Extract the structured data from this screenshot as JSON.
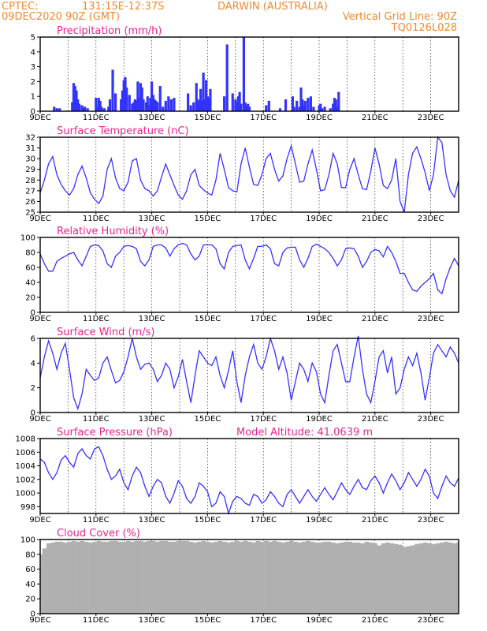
{
  "header": {
    "center": "CPTEC:",
    "coords": "131:15E-12:37S",
    "location": "DARWIN (AUSTRALIA)",
    "init": "09DEC2020 90Z (GMT)",
    "grid_line": "Vertical Grid Line: 90Z",
    "model": "TQ0126L028"
  },
  "x_ticks": [
    "9DEC",
    "11DEC",
    "13DEC",
    "15DEC",
    "17DEC",
    "19DEC",
    "21DEC",
    "23DEC"
  ],
  "colors": {
    "series": "#3333ff",
    "cloud": "#b0b0b0",
    "title": "#e8258c",
    "header": "#f08a2e"
  },
  "chart_data": [
    {
      "type": "bar",
      "title": "Precipitation (mm/h)",
      "ylim": [
        0,
        5
      ],
      "yticks": [
        0,
        1,
        2,
        3,
        4,
        5
      ],
      "x_unit": "days since 9DEC",
      "x": [
        0.5,
        0.6,
        0.7,
        1.15,
        1.2,
        1.25,
        1.3,
        1.35,
        1.4,
        1.5,
        1.55,
        1.6,
        1.7,
        2.0,
        2.05,
        2.1,
        2.15,
        2.2,
        2.3,
        2.45,
        2.5,
        2.6,
        2.7,
        2.9,
        2.95,
        3.0,
        3.05,
        3.1,
        3.2,
        3.3,
        3.35,
        3.4,
        3.45,
        3.5,
        3.55,
        3.6,
        3.65,
        3.7,
        3.8,
        3.85,
        3.9,
        3.95,
        4.0,
        4.05,
        4.1,
        4.15,
        4.2,
        4.3,
        4.4,
        4.5,
        4.6,
        4.7,
        4.8,
        5.3,
        5.4,
        5.5,
        5.6,
        5.65,
        5.7,
        5.75,
        5.8,
        5.85,
        5.9,
        5.95,
        6.0,
        6.05,
        6.1,
        6.6,
        6.7,
        6.9,
        7.0,
        7.05,
        7.1,
        7.15,
        7.2,
        7.3,
        7.35,
        7.4,
        7.45,
        7.5,
        8.1,
        8.2,
        8.6,
        8.8,
        9.05,
        9.1,
        9.2,
        9.3,
        9.35,
        9.4,
        9.45,
        9.5,
        9.6,
        9.7,
        9.8,
        10.0,
        10.05,
        10.1,
        10.2,
        10.4,
        10.5,
        10.55,
        10.6,
        10.65,
        10.7
      ],
      "values": [
        0.3,
        0.2,
        0.2,
        0.6,
        1.9,
        1.7,
        1.4,
        0.8,
        0.5,
        0.4,
        0.2,
        0.3,
        0.2,
        0.9,
        0.3,
        0.9,
        0.7,
        0.3,
        0.2,
        0.3,
        0.8,
        2.8,
        1.2,
        0.8,
        1.4,
        2.1,
        2.3,
        1.6,
        1.1,
        0.5,
        0.6,
        0.8,
        0.7,
        2.0,
        0.9,
        1.9,
        1.6,
        0.8,
        0.6,
        1.0,
        0.4,
        0.9,
        2.0,
        1.1,
        0.8,
        0.7,
        0.6,
        1.7,
        0.3,
        0.7,
        1.0,
        0.8,
        0.9,
        1.2,
        0.4,
        0.6,
        1.9,
        0.8,
        0.7,
        1.5,
        0.7,
        2.6,
        0.8,
        2.1,
        1.0,
        0.9,
        1.5,
        1.0,
        4.5,
        1.2,
        0.8,
        0.6,
        1.0,
        1.3,
        0.5,
        5.0,
        0.6,
        0.4,
        0.5,
        0.3,
        0.4,
        0.7,
        0.2,
        0.8,
        1.0,
        0.3,
        0.7,
        0.3,
        1.6,
        0.8,
        0.4,
        0.7,
        0.9,
        1.0,
        0.3,
        0.4,
        0.5,
        0.2,
        0.3,
        0.2,
        0.5,
        0.9,
        0.8,
        0.3,
        1.3
      ]
    },
    {
      "type": "line",
      "title": "Surface Temperature (nC)",
      "ylim": [
        25,
        32
      ],
      "yticks": [
        25,
        26,
        27,
        28,
        29,
        30,
        31,
        32
      ],
      "x_unit": "days since 9DEC",
      "x": [
        0.0,
        0.15,
        0.3,
        0.45,
        0.6,
        0.75,
        0.9,
        1.05,
        1.2,
        1.35,
        1.5,
        1.65,
        1.8,
        1.95,
        2.1,
        2.25,
        2.4,
        2.55,
        2.7,
        2.85,
        3.0,
        3.15,
        3.3,
        3.45,
        3.6,
        3.75,
        3.9,
        4.05,
        4.2,
        4.35,
        4.5,
        4.65,
        4.8,
        4.95,
        5.1,
        5.25,
        5.4,
        5.55,
        5.7,
        5.85,
        6.0,
        6.15,
        6.3,
        6.45,
        6.6,
        6.75,
        6.9,
        7.05,
        7.2,
        7.35,
        7.5,
        7.65,
        7.8,
        7.95,
        8.1,
        8.25,
        8.4,
        8.55,
        8.7,
        8.85,
        9.0,
        9.15,
        9.3,
        9.45,
        9.6,
        9.75,
        9.9,
        10.05,
        10.2,
        10.35,
        10.5,
        10.65,
        10.8,
        10.95,
        11.1,
        11.25,
        11.4,
        11.55,
        11.7,
        11.85,
        12.0,
        12.15,
        12.3,
        12.45,
        12.6,
        12.75,
        12.9,
        13.05,
        13.2,
        13.35,
        13.5,
        13.65,
        13.8,
        13.95,
        14.1,
        14.25,
        14.4,
        14.55,
        14.7,
        14.85,
        15.0
      ],
      "values": [
        26.8,
        28.0,
        29.5,
        30.2,
        28.5,
        27.6,
        27.0,
        26.6,
        27.2,
        28.5,
        29.3,
        28.2,
        26.8,
        26.2,
        25.8,
        26.5,
        29.0,
        30.0,
        28.2,
        27.2,
        27.0,
        27.8,
        29.8,
        30.0,
        28.0,
        27.2,
        27.0,
        26.5,
        27.0,
        28.3,
        29.5,
        28.5,
        27.5,
        26.6,
        26.2,
        27.0,
        28.5,
        29.0,
        27.5,
        27.1,
        26.8,
        26.6,
        28.0,
        30.5,
        29.0,
        27.3,
        27.0,
        26.9,
        29.5,
        31.0,
        29.2,
        27.6,
        27.5,
        28.5,
        30.0,
        30.5,
        29.0,
        27.9,
        28.4,
        30.0,
        31.2,
        29.5,
        27.8,
        27.9,
        29.5,
        30.8,
        29.0,
        27.0,
        27.1,
        28.5,
        30.5,
        29.5,
        27.3,
        27.3,
        29.0,
        30.0,
        28.5,
        27.2,
        27.1,
        28.8,
        31.0,
        29.5,
        27.5,
        27.2,
        28.0,
        30.0,
        26.0,
        25.0,
        28.5,
        30.5,
        31.1,
        30.0,
        28.7,
        27.0,
        28.5,
        32.0,
        31.5,
        28.5,
        27.0,
        26.4,
        28.0
      ]
    },
    {
      "type": "line",
      "title": "Relative Humidity (%)",
      "ylim": [
        0,
        100
      ],
      "yticks": [
        0,
        20,
        40,
        60,
        80,
        100
      ],
      "x_unit": "days since 9DEC",
      "x": [
        0.0,
        0.15,
        0.3,
        0.45,
        0.6,
        0.75,
        0.9,
        1.05,
        1.2,
        1.35,
        1.5,
        1.65,
        1.8,
        1.95,
        2.1,
        2.25,
        2.4,
        2.55,
        2.7,
        2.85,
        3.0,
        3.15,
        3.3,
        3.45,
        3.6,
        3.75,
        3.9,
        4.05,
        4.2,
        4.35,
        4.5,
        4.65,
        4.8,
        4.95,
        5.1,
        5.25,
        5.4,
        5.55,
        5.7,
        5.85,
        6.0,
        6.15,
        6.3,
        6.45,
        6.6,
        6.75,
        6.9,
        7.05,
        7.2,
        7.35,
        7.5,
        7.65,
        7.8,
        7.95,
        8.1,
        8.25,
        8.4,
        8.55,
        8.7,
        8.85,
        9.0,
        9.15,
        9.3,
        9.45,
        9.6,
        9.75,
        9.9,
        10.05,
        10.2,
        10.35,
        10.5,
        10.65,
        10.8,
        10.95,
        11.1,
        11.25,
        11.4,
        11.55,
        11.7,
        11.85,
        12.0,
        12.15,
        12.3,
        12.45,
        12.6,
        12.75,
        12.9,
        13.05,
        13.2,
        13.35,
        13.5,
        13.65,
        13.8,
        13.95,
        14.1,
        14.25,
        14.4,
        14.55,
        14.7,
        14.85,
        15.0
      ],
      "values": [
        78,
        65,
        55,
        55,
        68,
        72,
        75,
        78,
        80,
        70,
        62,
        75,
        88,
        90,
        89,
        82,
        65,
        60,
        75,
        80,
        88,
        89,
        88,
        85,
        68,
        62,
        70,
        88,
        90,
        90,
        86,
        75,
        85,
        90,
        92,
        90,
        78,
        70,
        75,
        90,
        90,
        90,
        85,
        65,
        58,
        80,
        88,
        89,
        90,
        70,
        58,
        72,
        88,
        88,
        90,
        85,
        65,
        62,
        80,
        86,
        87,
        87,
        70,
        60,
        72,
        88,
        91,
        88,
        85,
        80,
        72,
        62,
        70,
        85,
        86,
        85,
        75,
        60,
        68,
        80,
        84,
        82,
        74,
        88,
        80,
        68,
        52,
        52,
        40,
        30,
        28,
        35,
        40,
        45,
        52,
        30,
        25,
        45,
        60,
        72,
        62
      ]
    },
    {
      "type": "line",
      "title": "Surface Wind (m/s)",
      "ylim": [
        0,
        6
      ],
      "yticks": [
        0,
        2,
        4,
        6
      ],
      "x_unit": "days since 9DEC",
      "x": [
        0.0,
        0.15,
        0.3,
        0.45,
        0.6,
        0.75,
        0.9,
        1.05,
        1.2,
        1.35,
        1.5,
        1.65,
        1.8,
        1.95,
        2.1,
        2.25,
        2.4,
        2.55,
        2.7,
        2.85,
        3.0,
        3.15,
        3.3,
        3.45,
        3.6,
        3.75,
        3.9,
        4.05,
        4.2,
        4.35,
        4.5,
        4.65,
        4.8,
        4.95,
        5.1,
        5.25,
        5.4,
        5.55,
        5.7,
        5.85,
        6.0,
        6.15,
        6.3,
        6.45,
        6.6,
        6.75,
        6.9,
        7.05,
        7.2,
        7.35,
        7.5,
        7.65,
        7.8,
        7.95,
        8.1,
        8.25,
        8.4,
        8.55,
        8.7,
        8.85,
        9.0,
        9.15,
        9.3,
        9.45,
        9.6,
        9.75,
        9.9,
        10.05,
        10.2,
        10.35,
        10.5,
        10.65,
        10.8,
        10.95,
        11.1,
        11.25,
        11.4,
        11.55,
        11.7,
        11.85,
        12.0,
        12.15,
        12.3,
        12.45,
        12.6,
        12.75,
        12.9,
        13.05,
        13.2,
        13.35,
        13.5,
        13.65,
        13.8,
        13.95,
        14.1,
        14.25,
        14.4,
        14.55,
        14.7,
        14.85,
        15.0
      ],
      "values": [
        2.8,
        4.5,
        5.8,
        4.8,
        3.5,
        4.8,
        5.6,
        3.5,
        1.2,
        0.3,
        1.5,
        3.5,
        3.0,
        2.6,
        2.8,
        4.0,
        4.5,
        3.4,
        2.4,
        2.6,
        3.3,
        4.5,
        6.0,
        4.5,
        3.5,
        3.9,
        4.0,
        3.5,
        2.5,
        3.0,
        4.0,
        3.5,
        2.0,
        2.9,
        4.3,
        2.5,
        0.8,
        3.0,
        5.0,
        4.5,
        4.0,
        3.8,
        4.5,
        3.0,
        2.0,
        3.4,
        5.0,
        2.5,
        0.8,
        3.0,
        4.5,
        5.5,
        4.0,
        3.5,
        4.5,
        6.0,
        5.0,
        3.5,
        4.5,
        3.2,
        1.0,
        2.5,
        4.0,
        3.5,
        2.5,
        4.0,
        3.3,
        1.5,
        0.8,
        3.0,
        5.0,
        5.5,
        4.0,
        2.5,
        2.5,
        4.5,
        6.2,
        3.5,
        1.5,
        0.8,
        2.5,
        4.5,
        5.0,
        3.2,
        4.5,
        1.5,
        2.0,
        3.5,
        4.5,
        3.8,
        4.8,
        3.2,
        1.0,
        2.8,
        4.8,
        5.5,
        5.0,
        4.5,
        5.3,
        4.8,
        4.0
      ]
    },
    {
      "type": "line",
      "title": "Surface Pressure (hPa)",
      "annotation": "Model Altitude: 41.0639 m",
      "ylim": [
        997,
        1008
      ],
      "yticks": [
        998,
        1000,
        1002,
        1004,
        1006,
        1008
      ],
      "x_unit": "days since 9DEC",
      "x": [
        0.0,
        0.15,
        0.3,
        0.45,
        0.6,
        0.75,
        0.9,
        1.05,
        1.2,
        1.35,
        1.5,
        1.65,
        1.8,
        1.95,
        2.1,
        2.25,
        2.4,
        2.55,
        2.7,
        2.85,
        3.0,
        3.15,
        3.3,
        3.45,
        3.6,
        3.75,
        3.9,
        4.05,
        4.2,
        4.35,
        4.5,
        4.65,
        4.8,
        4.95,
        5.1,
        5.25,
        5.4,
        5.55,
        5.7,
        5.85,
        6.0,
        6.15,
        6.3,
        6.45,
        6.6,
        6.75,
        6.9,
        7.05,
        7.2,
        7.35,
        7.5,
        7.65,
        7.8,
        7.95,
        8.1,
        8.25,
        8.4,
        8.55,
        8.7,
        8.85,
        9.0,
        9.15,
        9.3,
        9.45,
        9.6,
        9.75,
        9.9,
        10.05,
        10.2,
        10.35,
        10.5,
        10.65,
        10.8,
        10.95,
        11.1,
        11.25,
        11.4,
        11.55,
        11.7,
        11.85,
        12.0,
        12.15,
        12.3,
        12.45,
        12.6,
        12.75,
        12.9,
        13.05,
        13.2,
        13.35,
        13.5,
        13.65,
        13.8,
        13.95,
        14.1,
        14.25,
        14.4,
        14.55,
        14.7,
        14.85,
        15.0
      ],
      "values": [
        1005.0,
        1004.5,
        1003.0,
        1002.0,
        1003.0,
        1004.8,
        1005.5,
        1004.5,
        1003.8,
        1005.8,
        1006.5,
        1005.5,
        1005.0,
        1006.5,
        1006.8,
        1005.5,
        1003.5,
        1002.0,
        1002.5,
        1003.5,
        1001.5,
        1000.5,
        1002.5,
        1003.8,
        1003.0,
        1001.0,
        999.5,
        1001.0,
        1002.0,
        1001.5,
        999.5,
        998.5,
        1000.0,
        1001.8,
        1001.0,
        999.2,
        998.5,
        999.5,
        1001.5,
        1001.0,
        1000.2,
        998.0,
        998.5,
        1000.2,
        999.5,
        997.0,
        998.8,
        999.5,
        999.2,
        998.5,
        998.2,
        999.8,
        999.5,
        998.5,
        999.0,
        1000.2,
        999.5,
        998.5,
        998.0,
        999.8,
        1000.5,
        999.5,
        998.5,
        999.5,
        1000.5,
        999.5,
        998.8,
        999.8,
        1000.8,
        999.8,
        999.0,
        1000.2,
        1001.5,
        1000.5,
        999.8,
        1001.0,
        1002.0,
        1000.8,
        1000.5,
        1001.8,
        1002.5,
        1001.5,
        1000.0,
        1001.5,
        1002.8,
        1001.8,
        1000.5,
        1001.5,
        1003.0,
        1002.0,
        1001.0,
        1002.0,
        1003.5,
        1002.5,
        1000.0,
        999.2,
        1001.0,
        1002.5,
        1001.5,
        1001.0,
        1002.2
      ]
    },
    {
      "type": "area",
      "title": "Cloud Cover (%)",
      "ylim": [
        0,
        100
      ],
      "yticks": [
        0,
        20,
        40,
        60,
        80,
        100
      ],
      "x_unit": "days since 9DEC",
      "x": [
        0.0,
        0.15,
        0.3,
        0.45,
        0.6,
        0.75,
        0.9,
        1.05,
        1.2,
        1.35,
        1.5,
        1.65,
        1.8,
        1.95,
        2.1,
        2.25,
        2.4,
        2.55,
        2.7,
        2.85,
        3.0,
        3.15,
        3.3,
        3.45,
        3.6,
        3.75,
        3.9,
        4.05,
        4.2,
        4.35,
        4.5,
        4.65,
        4.8,
        4.95,
        5.1,
        5.25,
        5.4,
        5.55,
        5.7,
        5.85,
        6.0,
        6.15,
        6.3,
        6.45,
        6.6,
        6.75,
        6.9,
        7.05,
        7.2,
        7.35,
        7.5,
        7.65,
        7.8,
        7.95,
        8.1,
        8.25,
        8.4,
        8.55,
        8.7,
        8.85,
        9.0,
        9.15,
        9.3,
        9.45,
        9.6,
        9.75,
        9.9,
        10.05,
        10.2,
        10.35,
        10.5,
        10.65,
        10.8,
        10.95,
        11.1,
        11.25,
        11.4,
        11.55,
        11.7,
        11.85,
        12.0,
        12.15,
        12.3,
        12.45,
        12.6,
        12.75,
        12.9,
        13.05,
        13.2,
        13.35,
        13.5,
        13.65,
        13.8,
        13.95,
        14.1,
        14.25,
        14.4,
        14.55,
        14.7,
        14.85,
        15.0
      ],
      "values": [
        80,
        88,
        95,
        96,
        97,
        97,
        96,
        97,
        98,
        97,
        98,
        97,
        96,
        97,
        98,
        97,
        97,
        98,
        98,
        97,
        97,
        98,
        97,
        98,
        98,
        97,
        98,
        98,
        97,
        98,
        98,
        97,
        97,
        98,
        98,
        98,
        97,
        96,
        97,
        98,
        97,
        96,
        97,
        98,
        97,
        96,
        97,
        98,
        97,
        98,
        97,
        96,
        98,
        97,
        98,
        97,
        98,
        97,
        96,
        97,
        98,
        97,
        96,
        97,
        98,
        97,
        96,
        96,
        97,
        97,
        96,
        95,
        96,
        97,
        97,
        96,
        96,
        95,
        97,
        96,
        95,
        92,
        95,
        96,
        95,
        94,
        93,
        90,
        91,
        92,
        94,
        95,
        96,
        95,
        94,
        95,
        96,
        97,
        96,
        95,
        96
      ]
    }
  ]
}
